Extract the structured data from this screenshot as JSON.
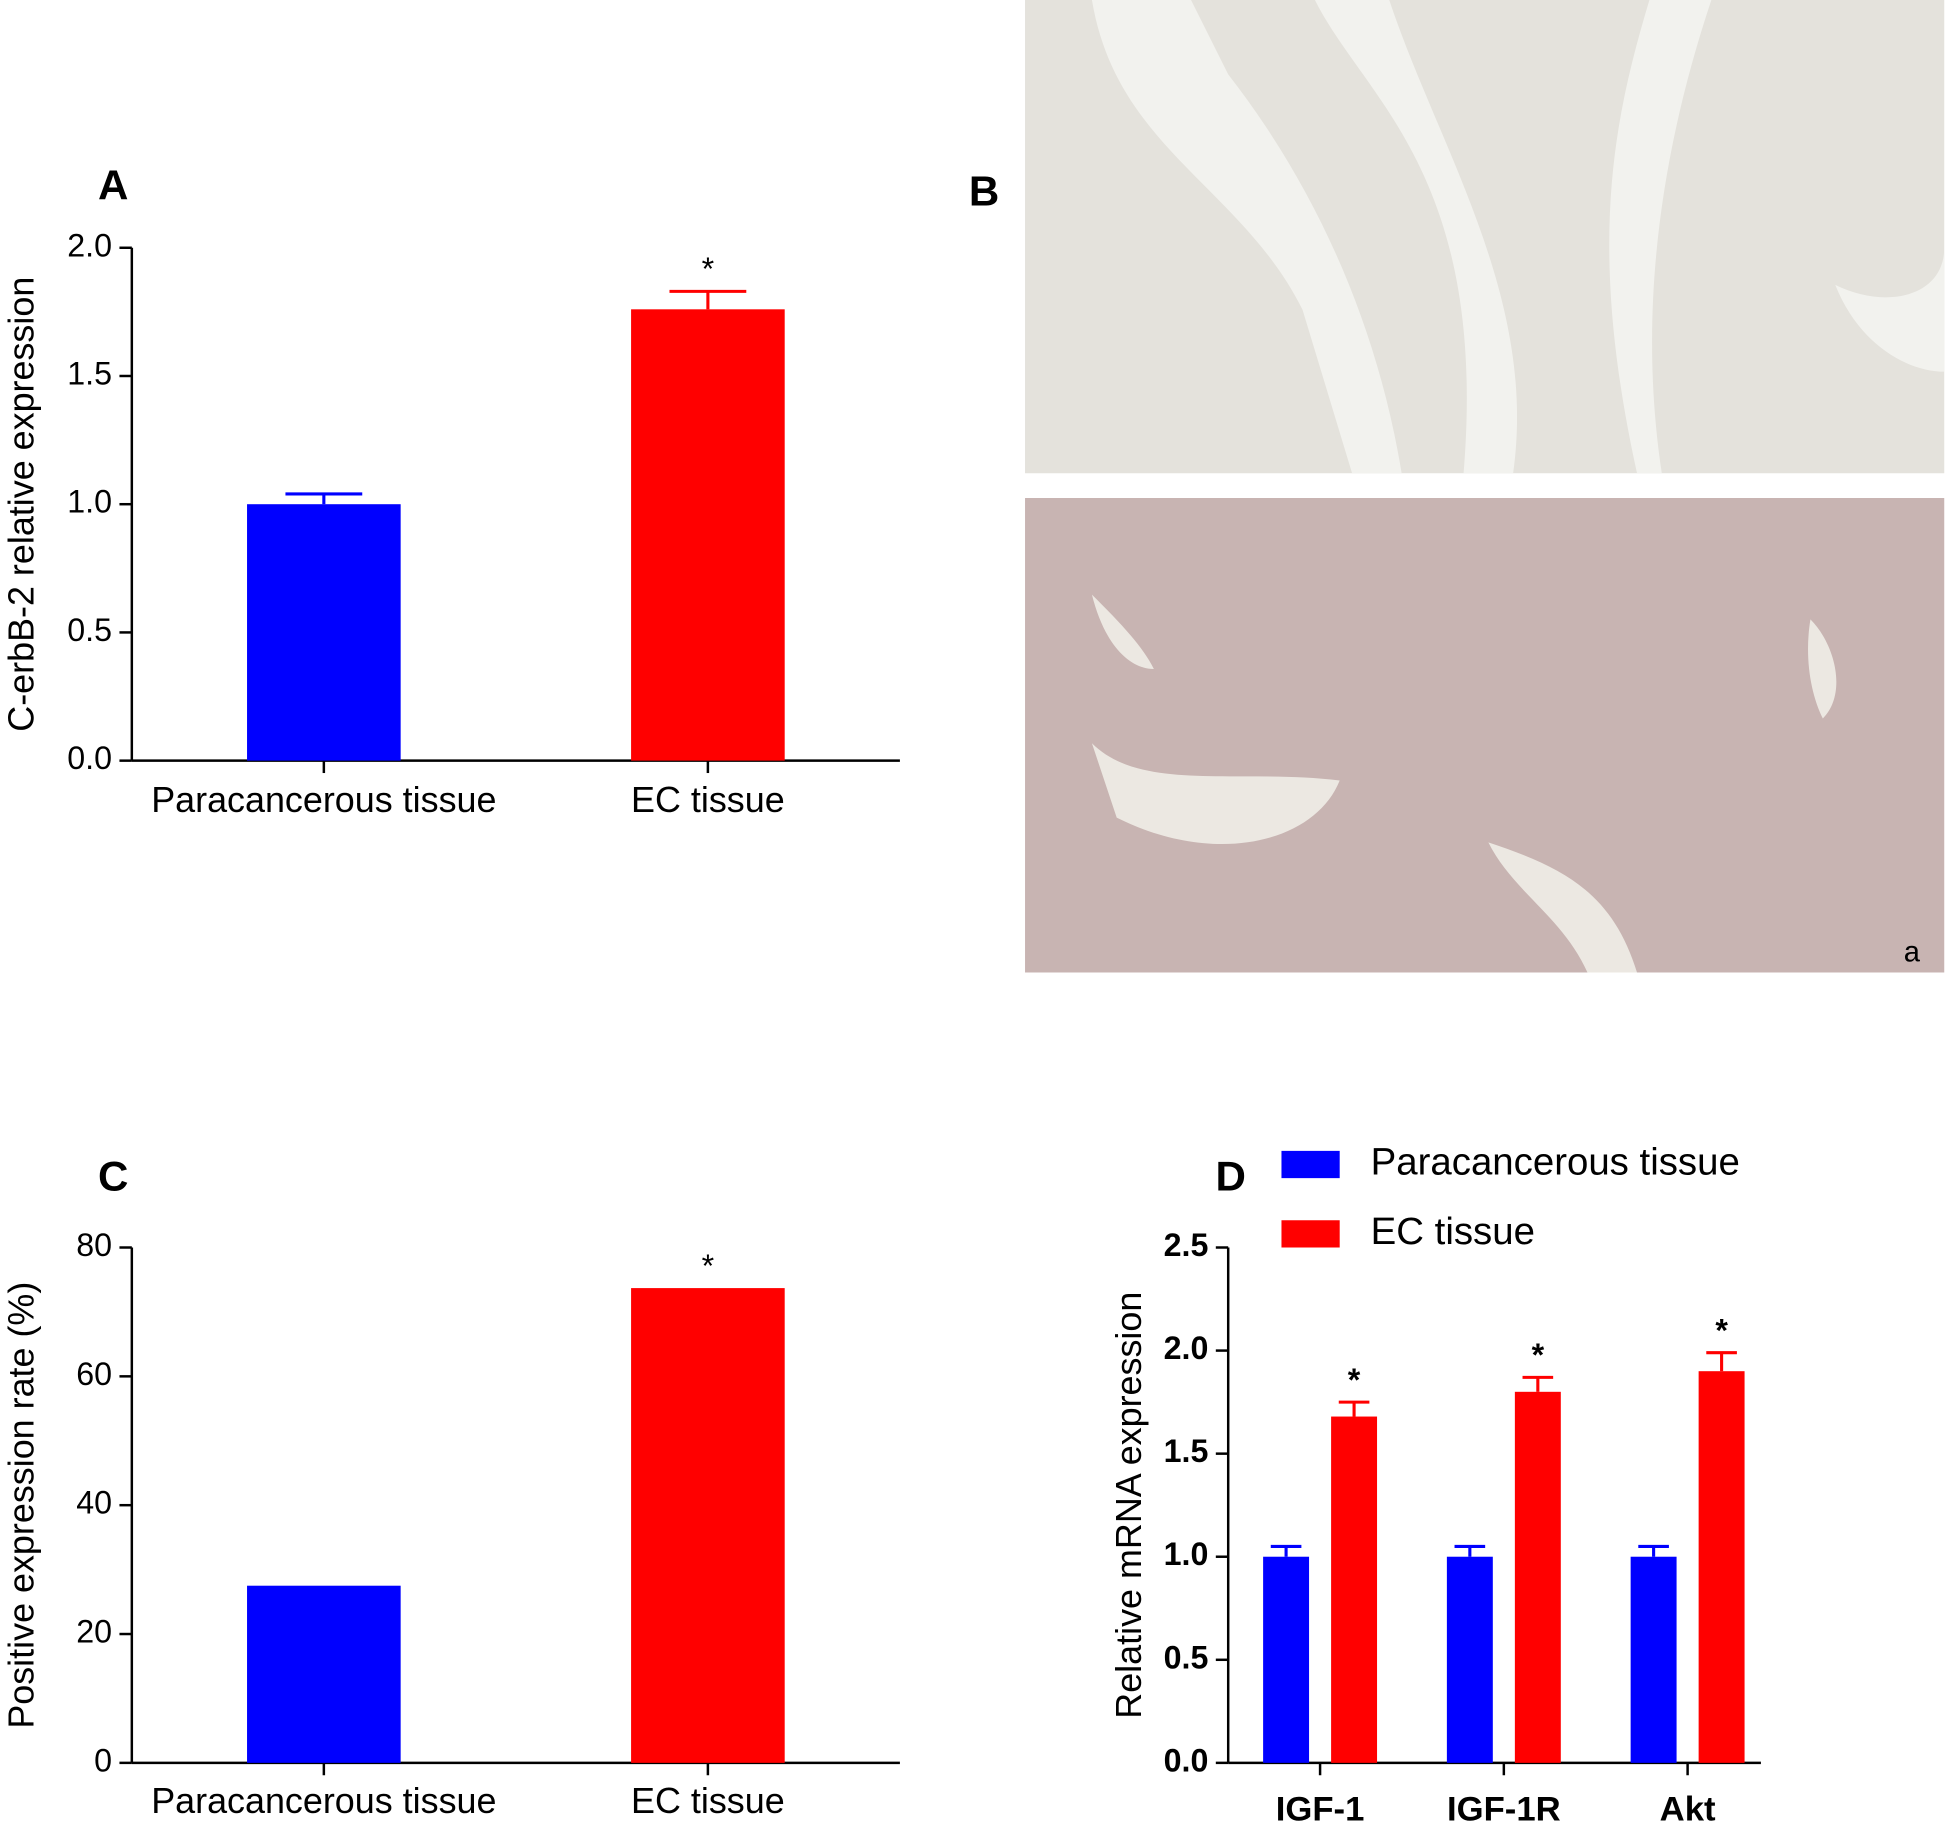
{
  "chart_data": [
    {
      "type": "bar",
      "panel_label": "A",
      "ylabel": "C-erbB-2 relative expression",
      "categories": [
        "Paracancerous tissue",
        "EC tissue"
      ],
      "values": [
        1.0,
        1.76
      ],
      "errors": [
        0.04,
        0.07
      ],
      "colors": [
        "#0000ff",
        "#ff0000"
      ],
      "annotations": [
        {
          "x": "EC tissue",
          "text": "*"
        }
      ],
      "ylim": [
        0,
        2
      ],
      "yticks": [
        {
          "value": 0,
          "label": "0.0"
        },
        {
          "value": 0.5,
          "label": "0.5"
        },
        {
          "value": 1,
          "label": "1.0"
        },
        {
          "value": 1.5,
          "label": "1.5"
        },
        {
          "value": 2,
          "label": "2.0"
        }
      ]
    },
    {
      "type": "bar",
      "panel_label": "C",
      "ylabel": "Positive expression rate (%)",
      "categories": [
        "Paracancerous tissue",
        "EC tissue"
      ],
      "values": [
        27.5,
        73.7
      ],
      "colors": [
        "#0000ff",
        "#ff0000"
      ],
      "annotations": [
        {
          "x": "EC tissue",
          "text": "*"
        }
      ],
      "ylim": [
        0,
        80
      ],
      "yticks": [
        0,
        20,
        40,
        60,
        80
      ]
    },
    {
      "type": "grouped-bar",
      "panel_label": "D",
      "ylabel": "Relative mRNA expression",
      "categories": [
        "IGF-1",
        "IGF-1R",
        "Akt"
      ],
      "series": [
        {
          "name": "Paracancerous tissue",
          "color": "#0000ff",
          "values": [
            1.0,
            1.0,
            1.0
          ],
          "errors": [
            0.05,
            0.05,
            0.05
          ]
        },
        {
          "name": "EC tissue",
          "color": "#ff0000",
          "values": [
            1.68,
            1.8,
            1.9
          ],
          "errors": [
            0.07,
            0.07,
            0.09
          ],
          "annotations": [
            "*",
            "*",
            "*"
          ]
        }
      ],
      "legend": "top-left",
      "ylim": [
        0,
        2.5
      ],
      "yticks": [
        {
          "value": 0,
          "label": "0.0"
        },
        {
          "value": 0.5,
          "label": "0.5"
        },
        {
          "value": 1,
          "label": "1.0"
        },
        {
          "value": 1.5,
          "label": "1.5"
        },
        {
          "value": 2,
          "label": "2.0"
        },
        {
          "value": 2.5,
          "label": "2.5"
        }
      ]
    }
  ],
  "panel_b": {
    "panel_label": "B",
    "image_label": "a"
  }
}
